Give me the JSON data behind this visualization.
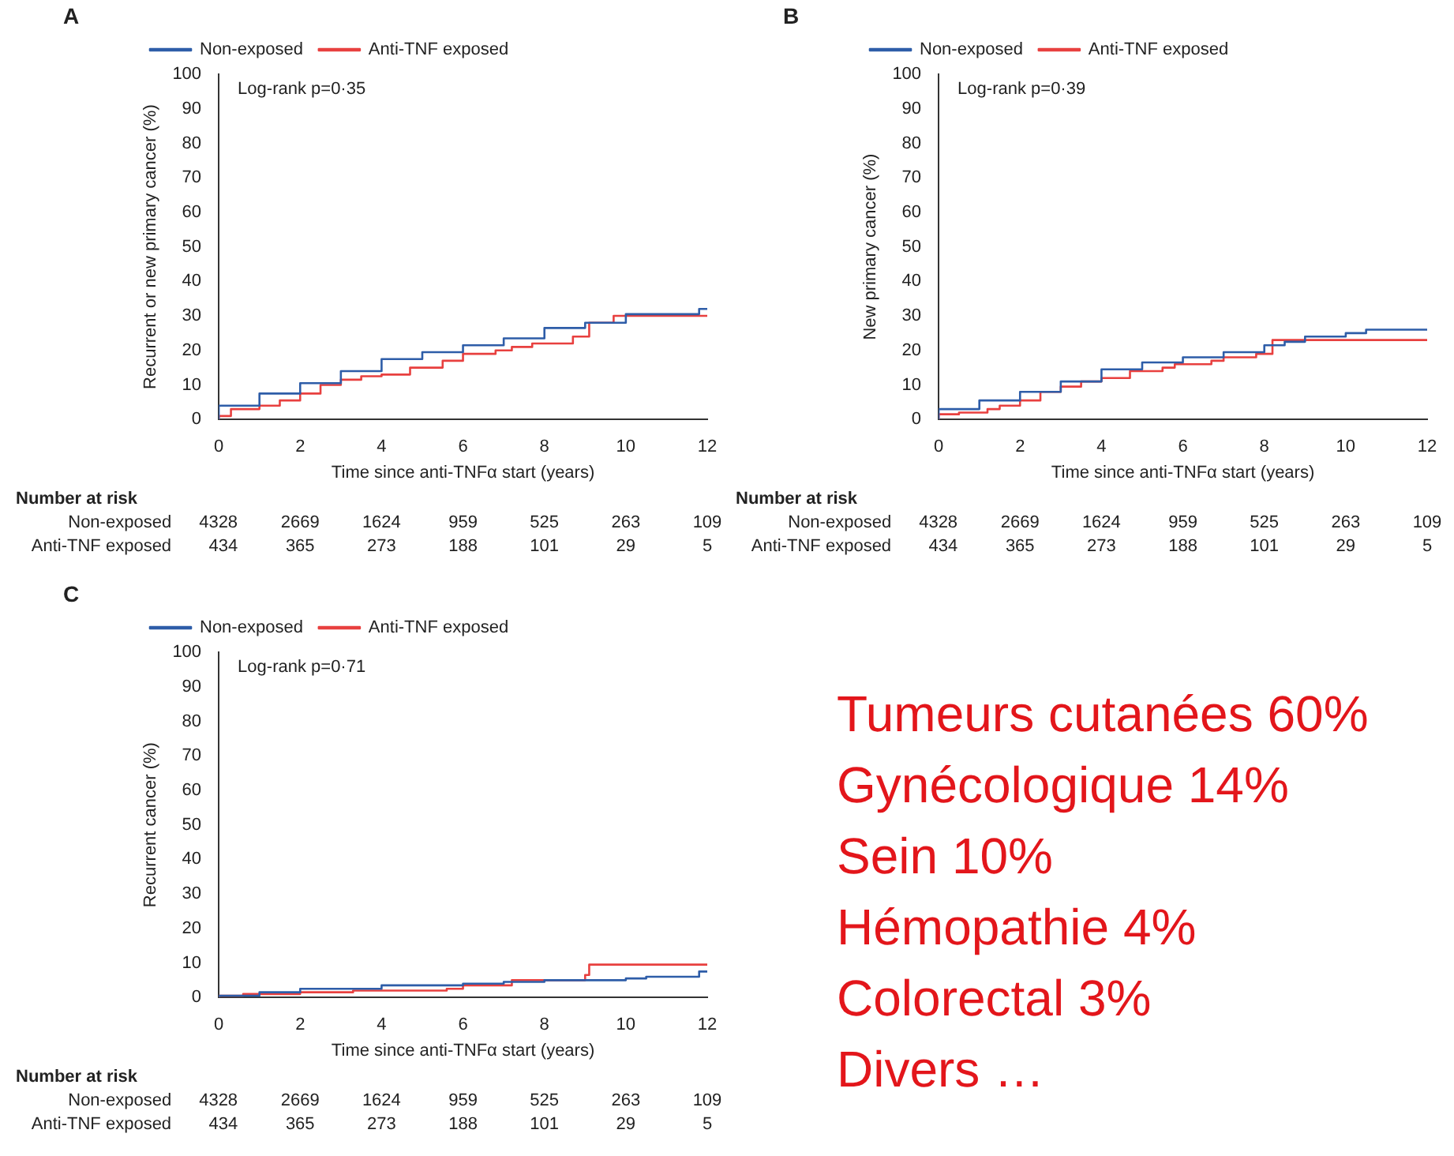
{
  "chart_data": [
    {
      "type": "step",
      "title": "A",
      "xlabel": "Time since anti-TNFα start (years)",
      "ylabel": "Recurrent or new primary cancer (%)",
      "xlim": [
        0,
        12
      ],
      "xticks": [
        0,
        2,
        4,
        6,
        8,
        10,
        12
      ],
      "ylim": [
        0,
        100
      ],
      "yticks": [
        0,
        10,
        20,
        30,
        40,
        50,
        60,
        70,
        80,
        90,
        100
      ],
      "grid": false,
      "legend": "top left",
      "marker": "none",
      "series": [
        {
          "name": "Non-exposed",
          "color": "#2e5da8",
          "x": [
            0,
            1,
            2,
            3,
            4,
            5,
            6,
            7,
            8,
            9,
            10,
            11,
            11.8,
            12
          ],
          "values": [
            0,
            4,
            7.5,
            10.5,
            14,
            17.5,
            19.5,
            21.5,
            23.5,
            26.5,
            28,
            30.5,
            30.5,
            32
          ]
        },
        {
          "name": "Anti-TNF exposed",
          "color": "#e8403f",
          "x": [
            0,
            0.3,
            1,
            1.5,
            2,
            2.5,
            3,
            3.5,
            4,
            4.7,
            5.5,
            6,
            6.8,
            7.2,
            7.7,
            8.7,
            9.1,
            9.7,
            10.1,
            12
          ],
          "values": [
            0,
            1,
            3,
            4,
            5.5,
            7.5,
            10,
            11.5,
            12.5,
            13,
            15,
            17,
            19,
            20,
            21,
            22,
            24,
            28,
            30,
            30
          ]
        }
      ],
      "annotations": [
        "Log-rank p=0·35",
        "Number at risk",
        "Non-exposed",
        "4328",
        "2669",
        "1624",
        "959",
        "525",
        "263",
        "109",
        "Anti-TNF exposed",
        "434",
        "365",
        "273",
        "188",
        "101",
        "29",
        "5"
      ]
    },
    {
      "type": "step",
      "title": "B",
      "xlabel": "Time since anti-TNFα start (years)",
      "ylabel": "New primary cancer (%)",
      "xlim": [
        0,
        12
      ],
      "xticks": [
        0,
        2,
        4,
        6,
        8,
        10,
        12
      ],
      "ylim": [
        0,
        100
      ],
      "yticks": [
        0,
        10,
        20,
        30,
        40,
        50,
        60,
        70,
        80,
        90,
        100
      ],
      "grid": false,
      "legend": "top left",
      "marker": "none",
      "series": [
        {
          "name": "Non-exposed",
          "color": "#2e5da8",
          "x": [
            0,
            1,
            2,
            3,
            4,
            5,
            6,
            7,
            8,
            8.5,
            9,
            10,
            10.5,
            11,
            12
          ],
          "values": [
            0,
            3,
            5.5,
            8,
            11,
            14.5,
            16.5,
            18,
            19.5,
            21.5,
            22.5,
            24,
            25,
            26,
            26
          ]
        },
        {
          "name": "Anti-TNF exposed",
          "color": "#e8403f",
          "x": [
            0,
            0.5,
            1.2,
            1.5,
            2,
            2.5,
            3,
            3.5,
            4,
            4.7,
            5.5,
            5.8,
            6.7,
            7,
            7.8,
            8.2,
            9.65,
            12
          ],
          "values": [
            0,
            1.5,
            2,
            3,
            4,
            5.5,
            8,
            9.5,
            11,
            12,
            14,
            15,
            16,
            17,
            18,
            19,
            23,
            23
          ]
        }
      ],
      "annotations": [
        "Log-rank p=0·39",
        "Number at risk",
        "Non-exposed",
        "4328",
        "2669",
        "1624",
        "959",
        "525",
        "263",
        "109",
        "Anti-TNF exposed",
        "434",
        "365",
        "273",
        "188",
        "101",
        "29",
        "5"
      ]
    },
    {
      "type": "step",
      "title": "C",
      "xlabel": "Time since anti-TNFα start (years)",
      "ylabel": "Recurrent cancer (%)",
      "xlim": [
        0,
        12
      ],
      "xticks": [
        0,
        2,
        4,
        6,
        8,
        10,
        12
      ],
      "ylim": [
        0,
        100
      ],
      "yticks": [
        0,
        10,
        20,
        30,
        40,
        50,
        60,
        70,
        80,
        90,
        100
      ],
      "grid": false,
      "legend": "top left",
      "marker": "none",
      "series": [
        {
          "name": "Non-exposed",
          "color": "#2e5da8",
          "x": [
            0,
            1,
            2,
            4,
            6,
            7,
            8,
            10,
            10.5,
            11.8,
            12
          ],
          "values": [
            0,
            0.5,
            1.5,
            2.5,
            3.5,
            4,
            4.5,
            5,
            5.5,
            6,
            7.5
          ]
        },
        {
          "name": "Anti-TNF exposed",
          "color": "#e8403f",
          "x": [
            0,
            0.6,
            2,
            3.3,
            5.6,
            6,
            7.2,
            9,
            9.1,
            10.05,
            12
          ],
          "values": [
            0,
            0.5,
            1,
            1.5,
            2,
            2.5,
            3.5,
            5,
            6.5,
            9.5,
            9.5
          ]
        }
      ],
      "annotations": [
        "Log-rank p=0·71",
        "Number at risk",
        "Non-exposed",
        "4328",
        "2669",
        "1624",
        "959",
        "525",
        "263",
        "109",
        "Anti-TNF exposed",
        "434",
        "365",
        "273",
        "188",
        "101",
        "29",
        "5"
      ]
    },
    {
      "type": "other",
      "annotations": [
        "Tumeurs cutanées 60%",
        "Gynécologique 14%",
        "Sein 10%",
        "Hémopathie 4%",
        "Colorectal 3%",
        "Divers …"
      ]
    }
  ]
}
